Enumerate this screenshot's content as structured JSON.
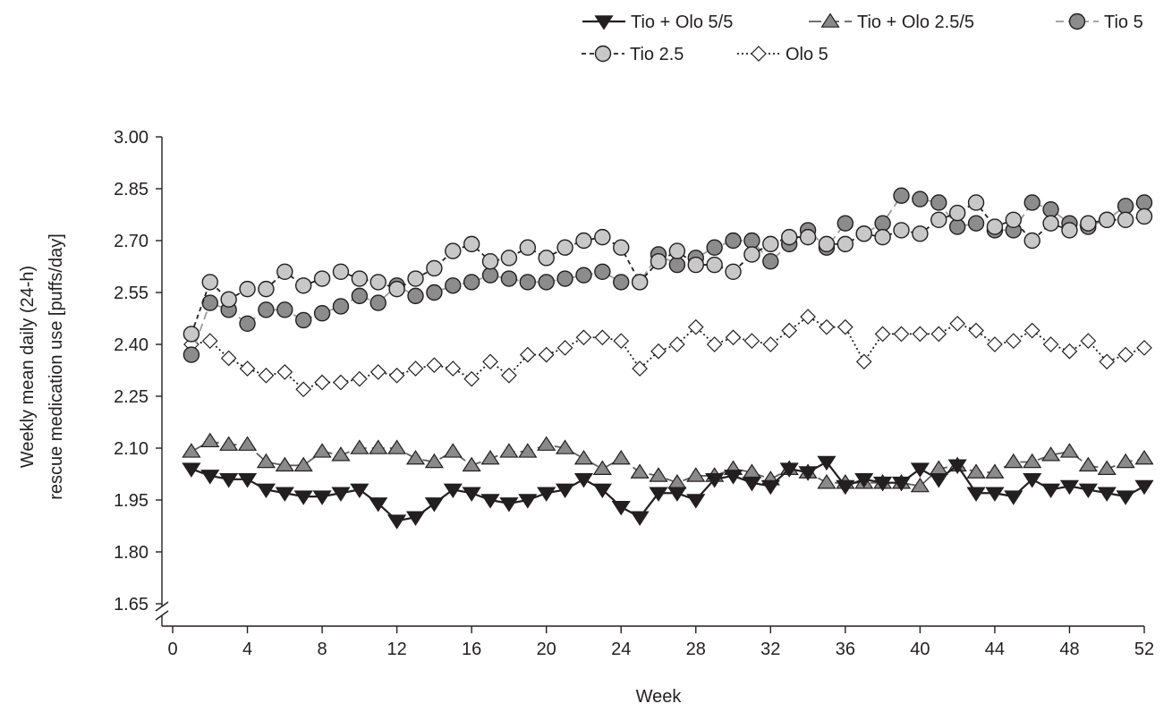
{
  "chart_data": {
    "type": "line",
    "xlabel": "Week",
    "ylabel_lines": [
      "Weekly mean daily (24-h)",
      "rescue medication use [puffs/day]"
    ],
    "xlim": [
      0,
      52
    ],
    "ylim": [
      1.65,
      3.0
    ],
    "x_ticks": [
      "0",
      "4",
      "8",
      "12",
      "16",
      "20",
      "24",
      "28",
      "32",
      "36",
      "40",
      "44",
      "48",
      "52"
    ],
    "y_ticks": [
      "1.65",
      "1.80",
      "1.95",
      "2.10",
      "2.25",
      "2.40",
      "2.55",
      "2.70",
      "2.85",
      "3.00"
    ],
    "axis_break": true,
    "grid": false,
    "legend_position": "top-right",
    "weeks": [
      1,
      2,
      3,
      4,
      5,
      6,
      7,
      8,
      9,
      10,
      11,
      12,
      13,
      14,
      15,
      16,
      17,
      18,
      19,
      20,
      21,
      22,
      23,
      24,
      25,
      26,
      27,
      28,
      29,
      30,
      31,
      32,
      33,
      34,
      35,
      36,
      37,
      38,
      39,
      40,
      41,
      42,
      43,
      44,
      45,
      46,
      47,
      48,
      49,
      50,
      51,
      52
    ],
    "series": [
      {
        "name": "Tio + Olo 5/5",
        "marker": "triangle-down",
        "line_style": "solid",
        "line_color": "#231f20",
        "marker_fill": "#231f20",
        "values": [
          2.04,
          2.02,
          2.01,
          2.01,
          1.98,
          1.97,
          1.96,
          1.96,
          1.97,
          1.98,
          1.94,
          1.89,
          1.9,
          1.94,
          1.98,
          1.97,
          1.95,
          1.94,
          1.95,
          1.97,
          1.98,
          2.01,
          1.98,
          1.93,
          1.9,
          1.97,
          1.97,
          1.95,
          2.01,
          2.02,
          2.0,
          1.99,
          2.04,
          2.03,
          2.06,
          1.99,
          2.01,
          2.0,
          2.0,
          2.04,
          2.01,
          2.05,
          1.97,
          1.97,
          1.96,
          2.01,
          1.98,
          1.99,
          1.98,
          1.97,
          1.96,
          1.99
        ]
      },
      {
        "name": "Tio + Olo 2.5/5",
        "marker": "triangle-up",
        "line_style": "long-dash",
        "line_color": "#5e5e5e",
        "marker_fill": "#8a8a8a",
        "values": [
          2.09,
          2.12,
          2.11,
          2.11,
          2.06,
          2.05,
          2.05,
          2.09,
          2.08,
          2.1,
          2.1,
          2.1,
          2.07,
          2.06,
          2.09,
          2.05,
          2.07,
          2.09,
          2.09,
          2.11,
          2.1,
          2.07,
          2.04,
          2.07,
          2.03,
          2.02,
          2.0,
          2.02,
          2.02,
          2.04,
          2.03,
          2.01,
          2.04,
          2.03,
          2.0,
          2.0,
          2.0,
          2.0,
          2.0,
          1.99,
          2.04,
          2.05,
          2.03,
          2.03,
          2.06,
          2.06,
          2.08,
          2.09,
          2.05,
          2.04,
          2.06,
          2.07
        ]
      },
      {
        "name": "Tio 5",
        "marker": "circle",
        "line_style": "dash",
        "line_color": "#9a9a9a",
        "marker_fill": "#8c8c8c",
        "values": [
          2.37,
          2.52,
          2.5,
          2.46,
          2.5,
          2.5,
          2.47,
          2.49,
          2.51,
          2.54,
          2.52,
          2.57,
          2.54,
          2.55,
          2.57,
          2.58,
          2.6,
          2.59,
          2.58,
          2.58,
          2.59,
          2.6,
          2.61,
          2.58,
          2.58,
          2.66,
          2.63,
          2.65,
          2.68,
          2.7,
          2.7,
          2.64,
          2.69,
          2.73,
          2.68,
          2.75,
          2.72,
          2.75,
          2.83,
          2.82,
          2.81,
          2.74,
          2.75,
          2.73,
          2.73,
          2.81,
          2.79,
          2.75,
          2.74,
          2.76,
          2.8,
          2.81
        ]
      },
      {
        "name": "Tio 2.5",
        "marker": "circle",
        "line_style": "short-dash",
        "line_color": "#231f20",
        "marker_fill": "#c8c8c8",
        "values": [
          2.43,
          2.58,
          2.53,
          2.56,
          2.56,
          2.61,
          2.57,
          2.59,
          2.61,
          2.59,
          2.58,
          2.56,
          2.59,
          2.62,
          2.67,
          2.69,
          2.64,
          2.65,
          2.68,
          2.65,
          2.68,
          2.7,
          2.71,
          2.68,
          2.58,
          2.64,
          2.67,
          2.63,
          2.63,
          2.61,
          2.66,
          2.69,
          2.71,
          2.71,
          2.69,
          2.69,
          2.72,
          2.71,
          2.73,
          2.72,
          2.76,
          2.78,
          2.81,
          2.74,
          2.76,
          2.7,
          2.75,
          2.73,
          2.75,
          2.76,
          2.76,
          2.77
        ]
      },
      {
        "name": "Olo 5",
        "marker": "diamond",
        "line_style": "dotted",
        "line_color": "#231f20",
        "marker_fill": "#ffffff",
        "values": [
          2.4,
          2.41,
          2.36,
          2.33,
          2.31,
          2.32,
          2.27,
          2.29,
          2.29,
          2.3,
          2.32,
          2.31,
          2.33,
          2.34,
          2.33,
          2.3,
          2.35,
          2.31,
          2.37,
          2.37,
          2.39,
          2.42,
          2.42,
          2.41,
          2.33,
          2.38,
          2.4,
          2.45,
          2.4,
          2.42,
          2.41,
          2.4,
          2.44,
          2.48,
          2.45,
          2.45,
          2.35,
          2.43,
          2.43,
          2.43,
          2.43,
          2.46,
          2.44,
          2.4,
          2.41,
          2.44,
          2.4,
          2.38,
          2.41,
          2.35,
          2.37,
          2.39
        ]
      }
    ]
  }
}
